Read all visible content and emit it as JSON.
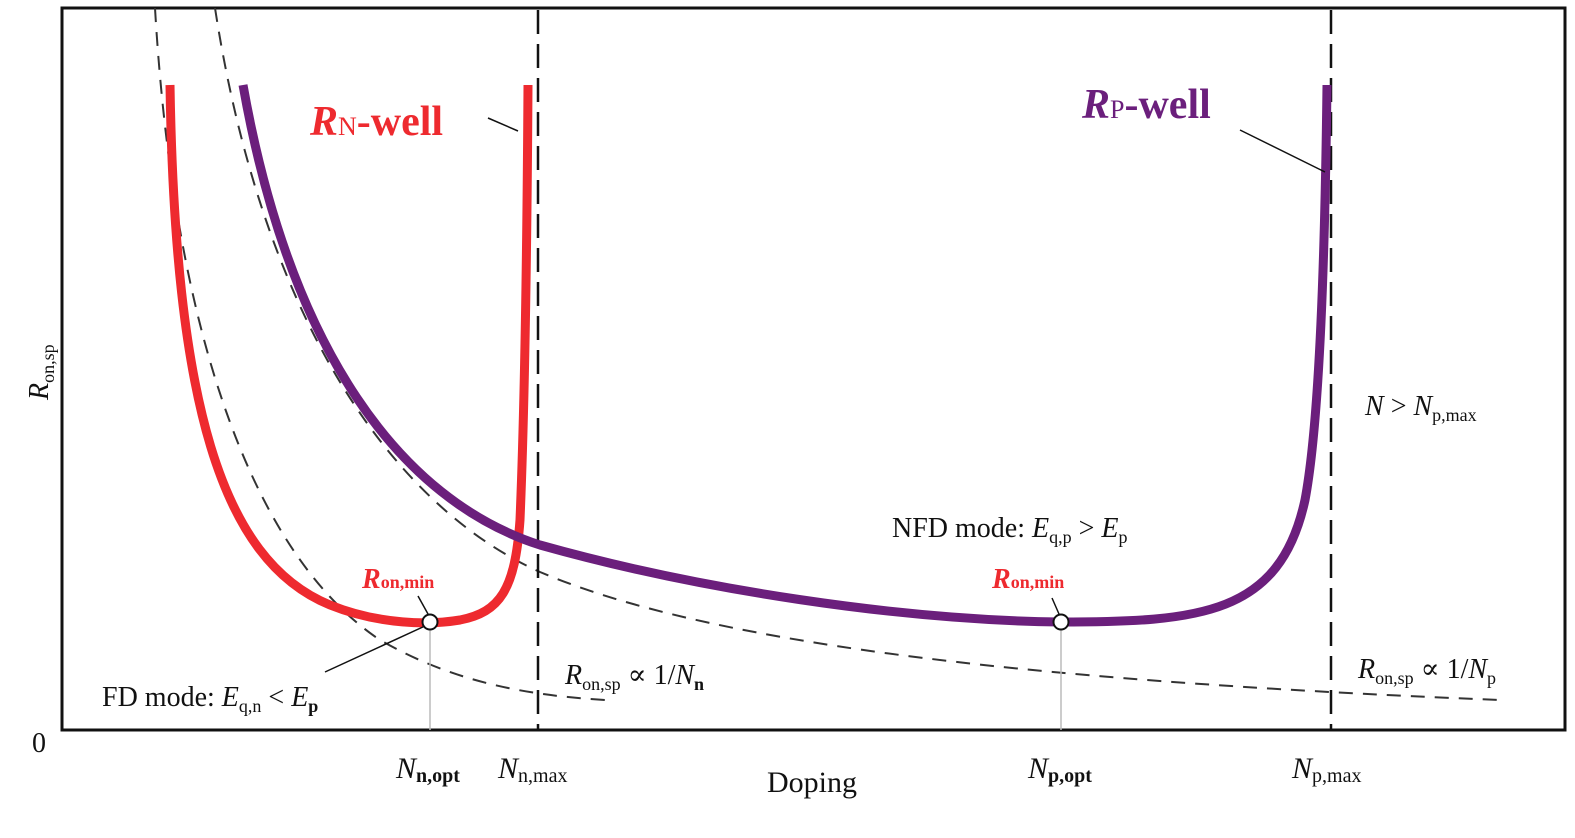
{
  "colors": {
    "n_well": "#ee2a2f",
    "p_well": "#6b1f7c",
    "axis": "#111111",
    "guide": "#333333"
  },
  "y_axis": {
    "label_main": "R",
    "label_sub": "on,sp",
    "origin": "0"
  },
  "x_axis": {
    "label": "Doping",
    "ticks": [
      {
        "main": "N",
        "sub": "n,opt"
      },
      {
        "main": "N",
        "sub": "n,max"
      },
      {
        "main": "N",
        "sub": "p,opt"
      },
      {
        "main": "N",
        "sub": "p,max"
      }
    ]
  },
  "curves": {
    "n_well": {
      "main": "R",
      "sub": "N",
      "rest": "-well"
    },
    "p_well": {
      "main": "R",
      "sub": "P",
      "rest": "-well"
    }
  },
  "annotations": {
    "ron_min": {
      "main": "R",
      "sub": "on,min"
    },
    "fd_mode": {
      "prefix": "FD mode: ",
      "e1": "E",
      "e1_sub": "q,n",
      "op": " < ",
      "e2": "E",
      "e2_sub": "p"
    },
    "nfd_mode": {
      "prefix": "NFD mode: ",
      "e1": "E",
      "e1_sub": "q,p",
      "op": " > ",
      "e2": "E",
      "e2_sub": "p"
    },
    "n_limit": {
      "main": "R",
      "sub": "on,sp",
      "prop": " ∝ 1/",
      "n": "N",
      "n_sub": "n"
    },
    "p_limit": {
      "main": "R",
      "sub": "on,sp",
      "prop": " ∝ 1/",
      "n": "N",
      "n_sub": "p"
    },
    "region": {
      "a": "N",
      "op": " > ",
      "b": "N",
      "b_sub": "p,max"
    }
  }
}
